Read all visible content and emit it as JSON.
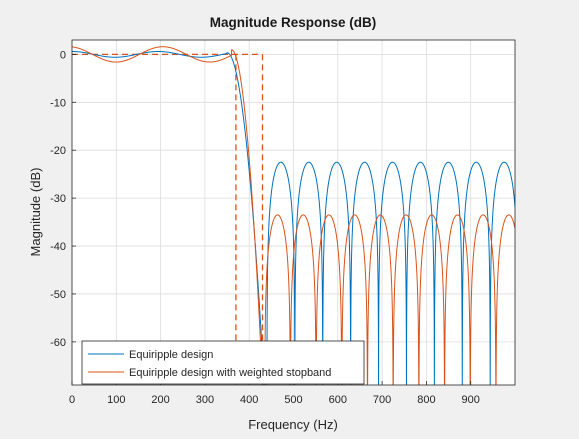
{
  "chart_data": {
    "type": "line",
    "title": "Magnitude Response (dB)",
    "xlabel": "Frequency (Hz)",
    "ylabel": "Magnitude (dB)",
    "xlim": [
      0,
      1000
    ],
    "ylim": [
      -69,
      3
    ],
    "xticks": [
      0,
      100,
      200,
      300,
      400,
      500,
      600,
      700,
      800,
      900
    ],
    "yticks": [
      0,
      -10,
      -20,
      -30,
      -40,
      -50,
      -60
    ],
    "grid": true,
    "legend_placement": "bottom-left",
    "series": [
      {
        "name": "Equiripple design",
        "color": "#0072bd",
        "passband_ripple_db": 0.6,
        "passband_edge_hz": 350,
        "stopband_edge_hz": 430,
        "stopband_peak_db": -22.5,
        "stopband_lobe_period_hz": 63,
        "stopband_first_null_hz": 440
      },
      {
        "name": "Equiripple design with weighted stopband",
        "color": "#d95319",
        "passband_ripple_db": 1.6,
        "passband_edge_hz": 360,
        "stopband_edge_hz": 420,
        "stopband_peak_db": -33.5,
        "stopband_lobe_period_hz": 58,
        "stopband_first_null_hz": 435
      }
    ],
    "spec_mask": {
      "color": "#d95319",
      "style": "dashed",
      "level_db": 0,
      "passband_edge_hz": 370,
      "stopband_edge_hz": 430
    }
  }
}
